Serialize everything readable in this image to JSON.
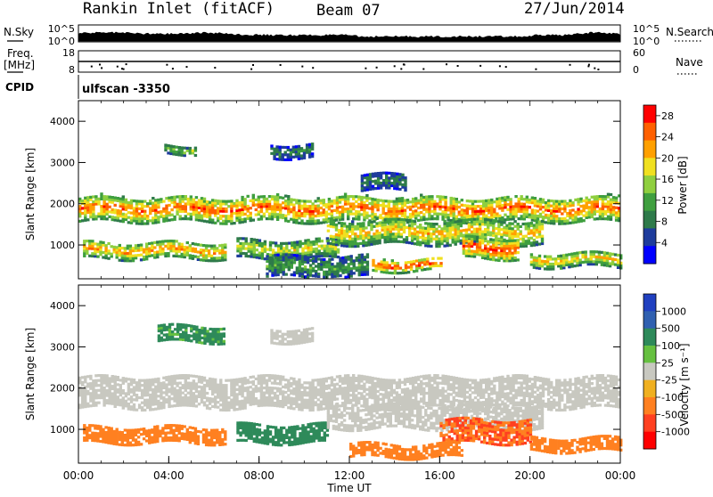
{
  "header": {
    "station": "Rankin Inlet (fitACF)",
    "beam": "Beam 07",
    "date": "27/Jun/2014"
  },
  "top_panels": {
    "nsky_label": "N.Sky",
    "nsearch_label": "N.Search",
    "noise_ticks_left": [
      "10^5",
      "10^0"
    ],
    "noise_ticks_right": [
      "10^5",
      "10^0"
    ],
    "freq_label_top": "Freq.",
    "freq_label_bottom": "[MHz]",
    "freq_ticks": [
      "18",
      "8"
    ],
    "nave_label": "Nave",
    "nave_ticks": [
      "60",
      "0"
    ],
    "cpid_label": "CPID",
    "cpid_value": "ulfscan -3350"
  },
  "chart_data": [
    {
      "type": "heatmap",
      "title": "",
      "ylabel": "Slant Range [km]",
      "xlabel": "",
      "ylim": [
        180,
        4500
      ],
      "xlim": [
        "00:00",
        "24:00"
      ],
      "y_ticks": [
        "4000",
        "3000",
        "2000",
        "1000"
      ],
      "y_tick_values": [
        4000,
        3000,
        2000,
        1000
      ],
      "colorbar": {
        "label": "Power [dB]",
        "ticks": [
          "28",
          "24",
          "20",
          "16",
          "12",
          "8",
          "4"
        ],
        "tick_values": [
          28,
          24,
          20,
          16,
          12,
          8,
          4
        ],
        "range": [
          0,
          30
        ],
        "colors": [
          "#0000ff",
          "#1e3c9c",
          "#2e7a4a",
          "#3f9f3f",
          "#8fcf3f",
          "#f0e020",
          "#ffa000",
          "#ff6000",
          "#ff0000"
        ]
      },
      "bands": [
        {
          "t0": 0.0,
          "t1": 24.0,
          "r0": 1550,
          "r1": 2150,
          "level": 22
        },
        {
          "t0": 0.2,
          "t1": 6.5,
          "r0": 650,
          "r1": 1050,
          "level": 20
        },
        {
          "t0": 7.0,
          "t1": 11.5,
          "r0": 650,
          "r1": 1100,
          "level": 16
        },
        {
          "t0": 11.0,
          "t1": 20.5,
          "r0": 1000,
          "r1": 1600,
          "level": 18
        },
        {
          "t0": 17.0,
          "t1": 19.5,
          "r0": 650,
          "r1": 1150,
          "level": 24
        },
        {
          "t0": 8.3,
          "t1": 12.8,
          "r0": 200,
          "r1": 700,
          "level": 10
        },
        {
          "t0": 13.0,
          "t1": 16.0,
          "r0": 350,
          "r1": 650,
          "level": 24
        },
        {
          "t0": 20.0,
          "t1": 24.0,
          "r0": 450,
          "r1": 800,
          "level": 18
        },
        {
          "t0": 8.5,
          "t1": 10.3,
          "r0": 3100,
          "r1": 3450,
          "level": 8
        },
        {
          "t0": 3.8,
          "t1": 5.2,
          "r0": 3200,
          "r1": 3400,
          "level": 14
        },
        {
          "t0": 12.5,
          "t1": 14.5,
          "r0": 2300,
          "r1": 2700,
          "level": 8
        }
      ]
    },
    {
      "type": "heatmap",
      "title": "",
      "ylabel": "Slant Range [km]",
      "xlabel": "Time UT",
      "ylim": [
        180,
        4500
      ],
      "xlim": [
        "00:00",
        "24:00"
      ],
      "x_ticks": [
        "00:00",
        "04:00",
        "08:00",
        "12:00",
        "16:00",
        "20:00",
        "00:00"
      ],
      "x_tick_values": [
        0,
        4,
        8,
        12,
        16,
        20,
        24
      ],
      "y_ticks": [
        "4000",
        "3000",
        "2000",
        "1000"
      ],
      "y_tick_values": [
        4000,
        3000,
        2000,
        1000
      ],
      "colorbar": {
        "label": "Velocity [m s⁻¹]",
        "ticks": [
          "1000",
          "500",
          "100",
          "25",
          "-25",
          "-100",
          "-500",
          "-1000"
        ],
        "tick_values": [
          1000,
          500,
          100,
          25,
          -25,
          -100,
          -500,
          -1000
        ],
        "colors": [
          "#2040c0",
          "#3060b0",
          "#2e8a5a",
          "#66c040",
          "#c8c8c0",
          "#f0b020",
          "#ff8020",
          "#ff4020",
          "#ff0000"
        ]
      },
      "bands": [
        {
          "t0": 0.0,
          "t1": 24.0,
          "r0": 1500,
          "r1": 2250,
          "level": 0
        },
        {
          "t0": 0.2,
          "t1": 6.5,
          "r0": 650,
          "r1": 1050,
          "level": -300
        },
        {
          "t0": 7.0,
          "t1": 11.0,
          "r0": 650,
          "r1": 1100,
          "level": 200
        },
        {
          "t0": 11.0,
          "t1": 20.5,
          "r0": 1000,
          "r1": 1600,
          "level": 0
        },
        {
          "t0": 16.0,
          "t1": 20.0,
          "r0": 650,
          "r1": 1200,
          "level": -500
        },
        {
          "t0": 12.0,
          "t1": 17.0,
          "r0": 300,
          "r1": 650,
          "level": -300
        },
        {
          "t0": 20.0,
          "t1": 24.0,
          "r0": 450,
          "r1": 800,
          "level": -200
        },
        {
          "t0": 3.5,
          "t1": 6.5,
          "r0": 3100,
          "r1": 3500,
          "level": 150
        },
        {
          "t0": 8.5,
          "t1": 10.3,
          "r0": 3100,
          "r1": 3450,
          "level": 0
        }
      ]
    }
  ]
}
